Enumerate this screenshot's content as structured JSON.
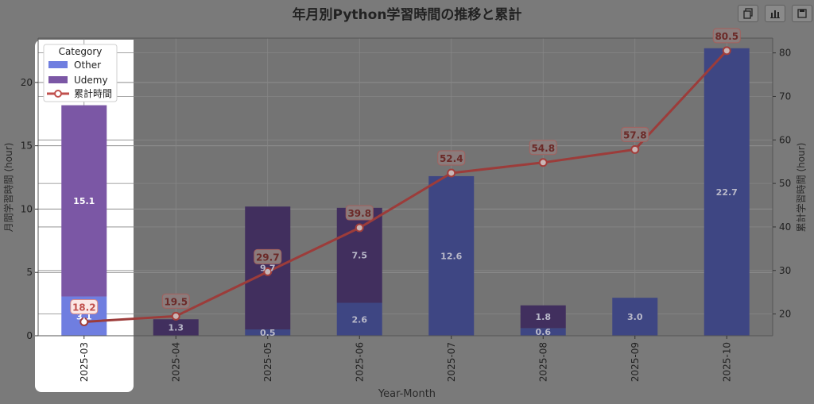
{
  "toolbar": {
    "icons": [
      "copy-icon",
      "bar-chart-icon",
      "save-icon"
    ]
  },
  "chart_data": {
    "type": "bar",
    "title": "年月別Python学習時間の推移と累計",
    "xlabel": "Year-Month",
    "ylabel": "月間学習時間 (hour)",
    "y2label": "累計学習時間 (hour)",
    "categories": [
      "2025-03",
      "2025-04",
      "2025-05",
      "2025-06",
      "2025-07",
      "2025-08",
      "2025-09",
      "2025-10"
    ],
    "stacked": true,
    "ylim": [
      0,
      23.5
    ],
    "y2lim": [
      15,
      83.4
    ],
    "yticks": [
      0,
      5,
      10,
      15,
      20
    ],
    "y2ticks": [
      20,
      30,
      40,
      50,
      60,
      70,
      80
    ],
    "legend": {
      "title": "Category",
      "position": "top-left",
      "entries": [
        "Other",
        "Udemy",
        "累計時間"
      ]
    },
    "series": [
      {
        "name": "Other",
        "color": "#6f7ee0",
        "values": [
          3.1,
          0.0,
          0.5,
          2.6,
          12.6,
          0.6,
          3.0,
          22.7
        ],
        "labels": [
          "3.1",
          "",
          "0.5",
          "2.6",
          "12.6",
          "0.6",
          "3.0",
          "22.7"
        ]
      },
      {
        "name": "Udemy",
        "color": "#7b57a5",
        "values": [
          15.1,
          1.3,
          9.7,
          7.5,
          0.0,
          1.8,
          0.0,
          0.0
        ],
        "labels": [
          "15.1",
          "1.3",
          "9.7",
          "7.5",
          "",
          "1.8",
          "",
          ""
        ]
      }
    ],
    "line": {
      "name": "累計時間",
      "color": "#c0504d",
      "axis": "right",
      "values": [
        18.2,
        19.5,
        29.7,
        39.8,
        52.4,
        54.8,
        57.8,
        80.5
      ],
      "labels": [
        "18.2",
        "19.5",
        "29.7",
        "39.8",
        "52.4",
        "54.8",
        "57.8",
        "80.5"
      ]
    },
    "grid": true
  }
}
